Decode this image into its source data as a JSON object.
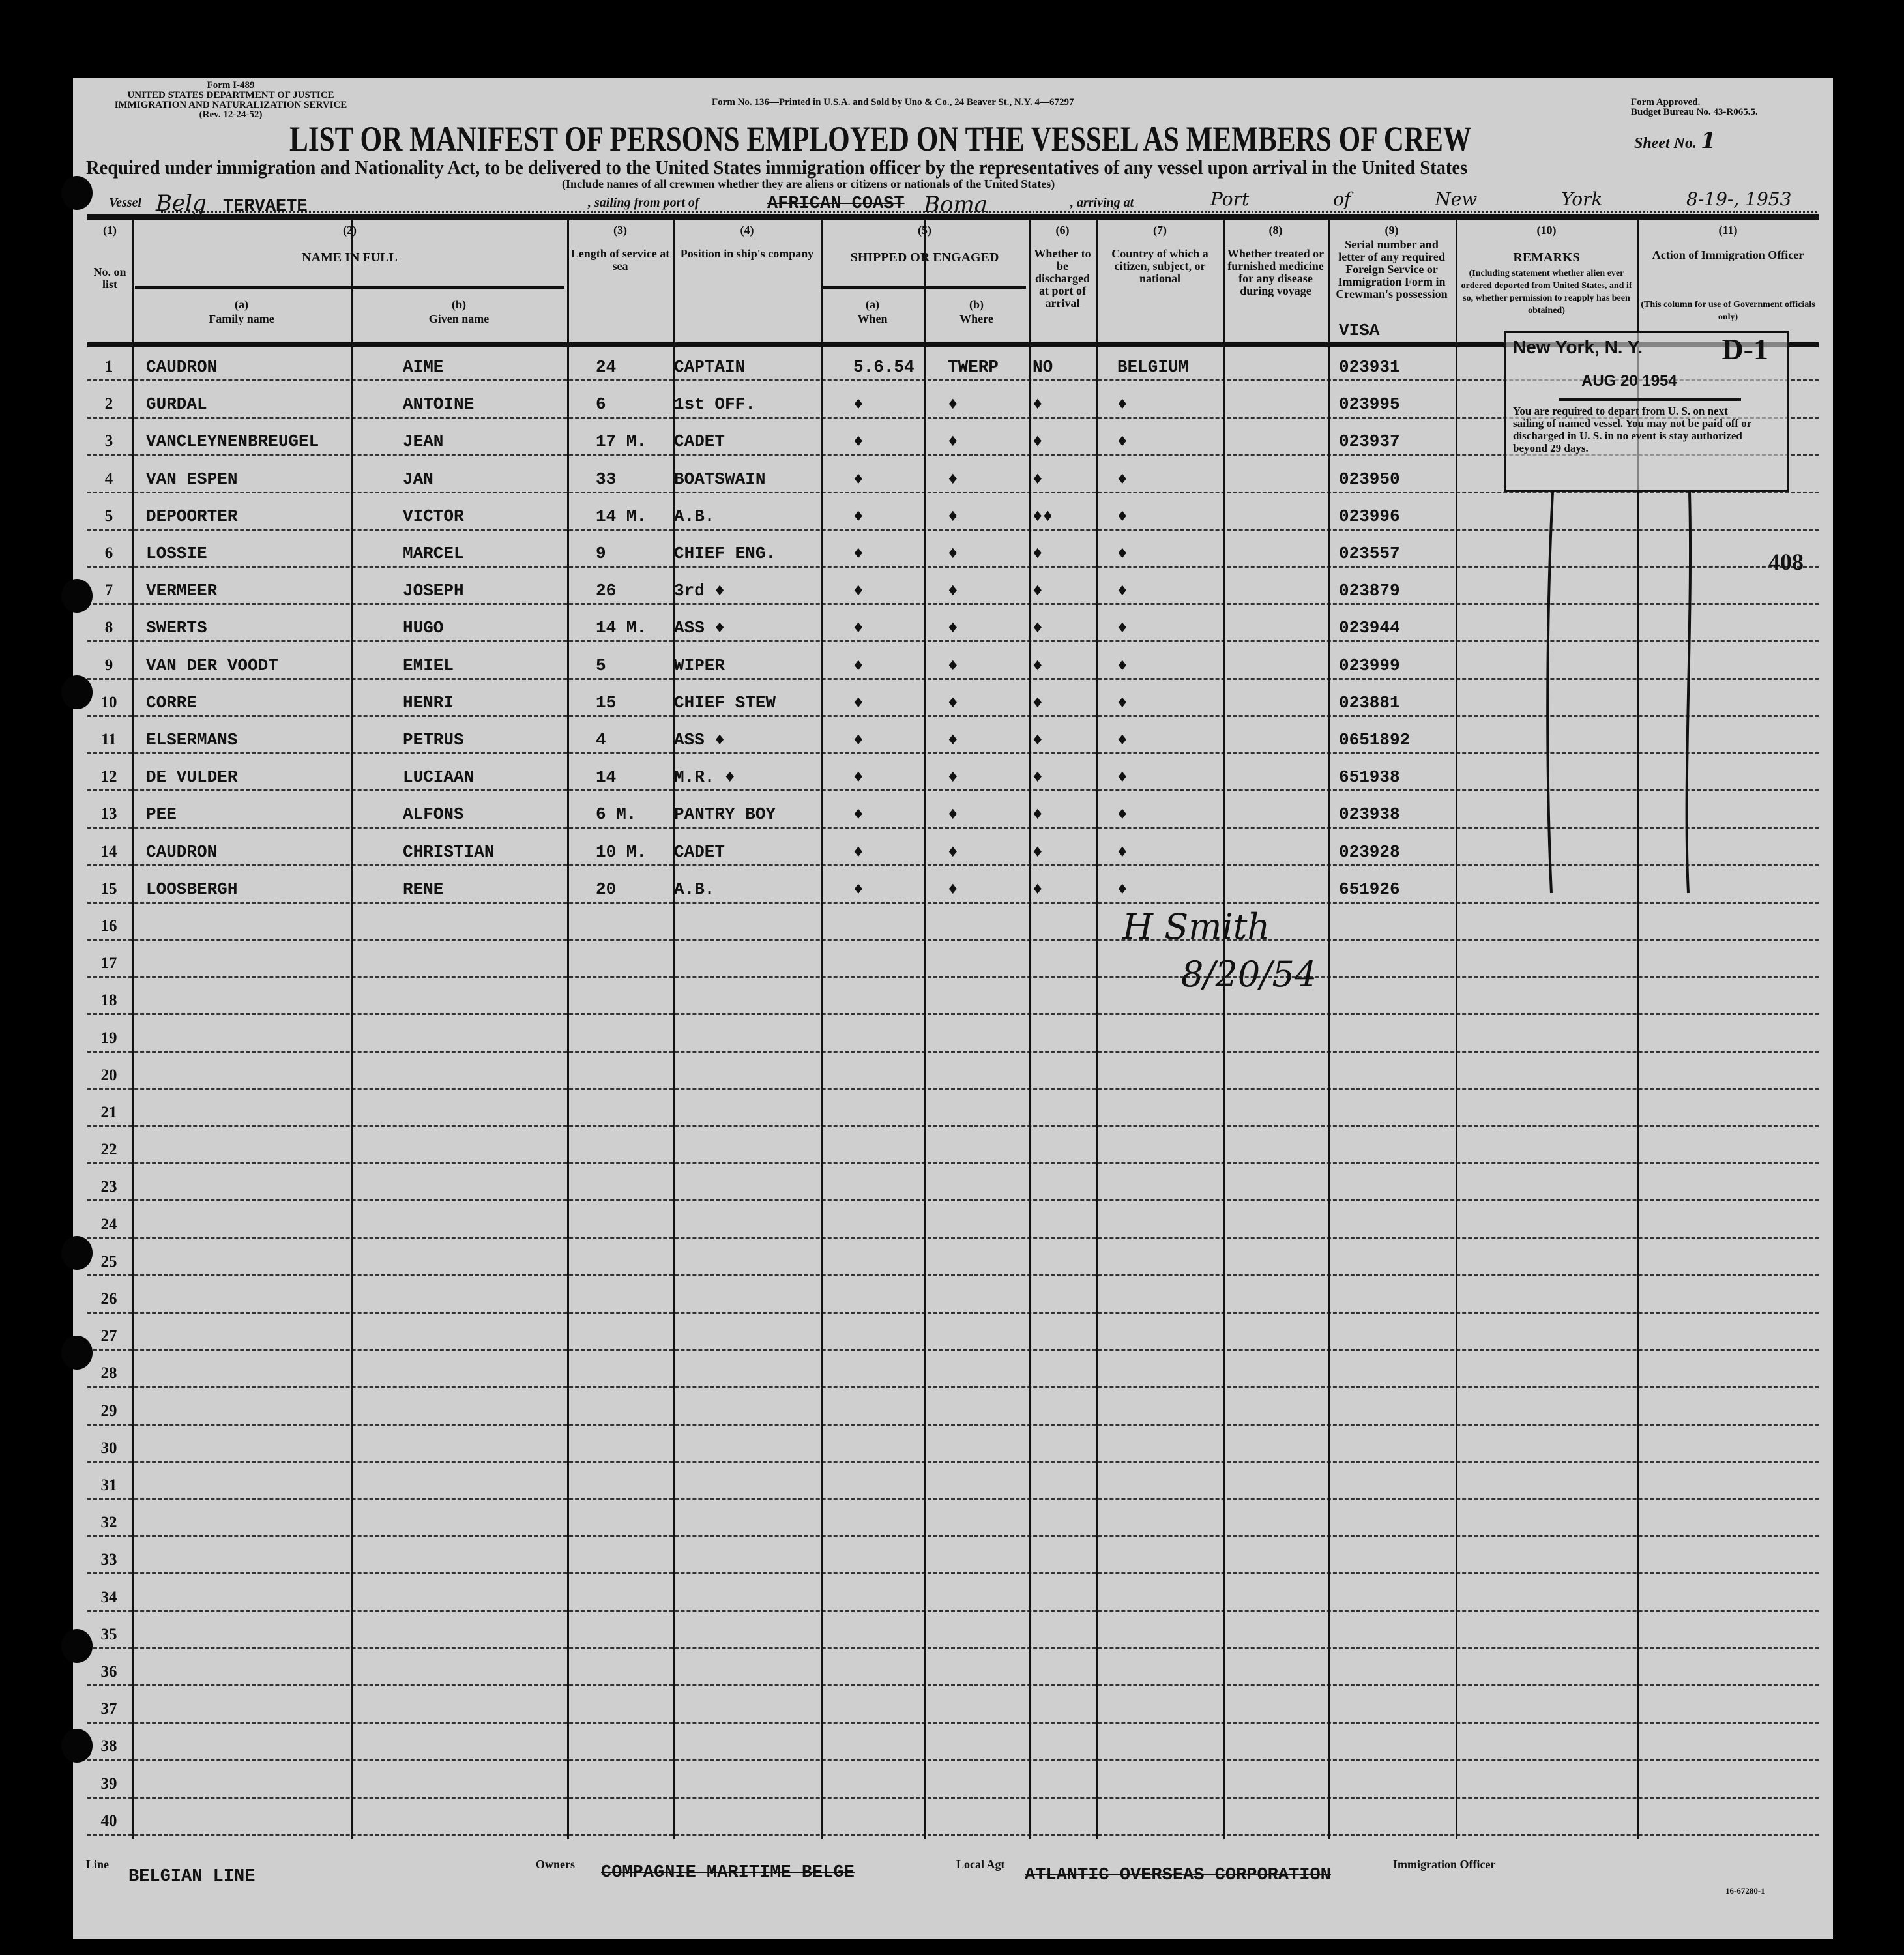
{
  "header": {
    "form_id": "Form I-489",
    "dept_line1": "UNITED STATES DEPARTMENT OF JUSTICE",
    "dept_line2": "IMMIGRATION AND NATURALIZATION SERVICE",
    "dept_line3": "(Rev. 12-24-52)",
    "printer": "Form No. 136—Printed in U.S.A. and Sold by Uno & Co., 24 Beaver St., N.Y. 4—67297",
    "approval_line1": "Form Approved.",
    "approval_line2": "Budget Bureau No. 43-R065.5.",
    "title": "LIST OR MANIFEST OF PERSONS EMPLOYED ON THE VESSEL AS MEMBERS OF CREW",
    "sheet_label": "Sheet No.",
    "sheet_no": "1",
    "subtitle": "Required under immigration and Nationality Act, to be delivered to the United States immigration officer by the representatives of any vessel upon arrival in the United States",
    "note": "(Include names of all crewmen whether they are aliens or citizens or nationals of the United States)"
  },
  "voyage": {
    "vessel_label": "Vessel",
    "vessel_flag_hand": "Belg",
    "vessel": "TERVAETE",
    "sailing_label": ", sailing from port of",
    "sailing_port": "AFRICAN COAST",
    "sailing_port_hand": "Boma",
    "arriving_label": ", arriving at",
    "arriving_hand": "Port of New York",
    "date_hand": "8-19-, 1953"
  },
  "columns": [
    {
      "num": "(1)",
      "label": "No. on list"
    },
    {
      "num": "(2)",
      "label": "NAME IN FULL",
      "sub": [
        {
          "num": "(a)",
          "label": "Family name"
        },
        {
          "num": "(b)",
          "label": "Given name"
        }
      ]
    },
    {
      "num": "(3)",
      "label": "Length of service at sea"
    },
    {
      "num": "(4)",
      "label": "Position in ship's company"
    },
    {
      "num": "(5)",
      "label": "SHIPPED OR ENGAGED",
      "sub": [
        {
          "num": "(a)",
          "label": "When"
        },
        {
          "num": "(b)",
          "label": "Where"
        }
      ]
    },
    {
      "num": "(6)",
      "label": "Whether to be discharged at port of arrival"
    },
    {
      "num": "(7)",
      "label": "Country of which a citizen, subject, or national"
    },
    {
      "num": "(8)",
      "label": "Whether treated or furnished medicine for any disease during voyage"
    },
    {
      "num": "(9)",
      "label": "Serial number and letter of any required Foreign Service or Immigration Form in Crewman's possession"
    },
    {
      "num": "(10)",
      "label": "REMARKS",
      "note": "(Including statement whether alien ever ordered deported from United States, and if so, whether permission to reapply has been obtained)"
    },
    {
      "num": "(11)",
      "label": "Action of Immigration Officer",
      "note": "(This column for use of Government officials only)"
    }
  ],
  "serial_heading": "VISA",
  "rows": [
    {
      "no": "1",
      "family": "CAUDRON",
      "given": "AIME",
      "length": "24",
      "position": "CAPTAIN",
      "when": "5.6.54",
      "where": "TWERP",
      "discharged": "NO",
      "country": "BELGIUM",
      "serial": "023931"
    },
    {
      "no": "2",
      "family": "GURDAL",
      "given": "ANTOINE",
      "length": "6",
      "position": "1st OFF.",
      "when": "♦",
      "where": "♦",
      "discharged": "♦",
      "country": "♦",
      "serial": "023995"
    },
    {
      "no": "3",
      "family": "VANCLEYNENBREUGEL",
      "given": "JEAN",
      "length": "17 M.",
      "position": "CADET",
      "when": "♦",
      "where": "♦",
      "discharged": "♦",
      "country": "♦",
      "serial": "023937"
    },
    {
      "no": "4",
      "family": "VAN ESPEN",
      "given": "JAN",
      "length": "33",
      "position": "BOATSWAIN",
      "when": "♦",
      "where": "♦",
      "discharged": "♦",
      "country": "♦",
      "serial": "023950"
    },
    {
      "no": "5",
      "family": "DEPOORTER",
      "given": "VICTOR",
      "length": "14 M.",
      "position": "A.B.",
      "when": "♦",
      "where": "♦",
      "discharged": "♦♦",
      "country": "♦",
      "serial": "023996"
    },
    {
      "no": "6",
      "family": "LOSSIE",
      "given": "MARCEL",
      "length": "9",
      "position": "CHIEF ENG.",
      "when": "♦",
      "where": "♦",
      "discharged": "♦",
      "country": "♦",
      "serial": "023557"
    },
    {
      "no": "7",
      "family": "VERMEER",
      "given": "JOSEPH",
      "length": "26",
      "position": "3rd ♦",
      "when": "♦",
      "where": "♦",
      "discharged": "♦",
      "country": "♦",
      "serial": "023879"
    },
    {
      "no": "8",
      "family": "SWERTS",
      "given": "HUGO",
      "length": "14 M.",
      "position": "ASS ♦",
      "when": "♦",
      "where": "♦",
      "discharged": "♦",
      "country": "♦",
      "serial": "023944"
    },
    {
      "no": "9",
      "family": "VAN DER VOODT",
      "given": "EMIEL",
      "length": "5",
      "position": "WIPER",
      "when": "♦",
      "where": "♦",
      "discharged": "♦",
      "country": "♦",
      "serial": "023999"
    },
    {
      "no": "10",
      "family": "CORRE",
      "given": "HENRI",
      "length": "15",
      "position": "CHIEF STEW",
      "when": "♦",
      "where": "♦",
      "discharged": "♦",
      "country": "♦",
      "serial": "023881"
    },
    {
      "no": "11",
      "family": "ELSERMANS",
      "given": "PETRUS",
      "length": "4",
      "position": "ASS ♦",
      "when": "♦",
      "where": "♦",
      "discharged": "♦",
      "country": "♦",
      "serial": "0651892"
    },
    {
      "no": "12",
      "family": "DE VULDER",
      "given": "LUCIAAN",
      "length": "14",
      "position": "M.R. ♦",
      "when": "♦",
      "where": "♦",
      "discharged": "♦",
      "country": "♦",
      "serial": "651938"
    },
    {
      "no": "13",
      "family": "PEE",
      "given": "ALFONS",
      "length": "6 M.",
      "position": "PANTRY BOY",
      "when": "♦",
      "where": "♦",
      "discharged": "♦",
      "country": "♦",
      "serial": "023938"
    },
    {
      "no": "14",
      "family": "CAUDRON",
      "given": "CHRISTIAN",
      "length": "10 M.",
      "position": "CADET",
      "when": "♦",
      "where": "♦",
      "discharged": "♦",
      "country": "♦",
      "serial": "023928"
    },
    {
      "no": "15",
      "family": "LOOSBERGH",
      "given": "RENE",
      "length": "20",
      "position": "A.B.",
      "when": "♦",
      "where": "♦",
      "discharged": "♦",
      "country": "♦",
      "serial": "651926"
    }
  ],
  "empty_row_numbers": [
    "16",
    "17",
    "18",
    "19",
    "20",
    "21",
    "22",
    "23",
    "24",
    "25",
    "26",
    "27",
    "28",
    "29",
    "30",
    "31",
    "32",
    "33",
    "34",
    "35",
    "36",
    "37",
    "38",
    "39",
    "40"
  ],
  "stamp": {
    "city": "New York, N. Y.",
    "code": "D-1",
    "date": "AUG 20 1954",
    "text": "You are required to depart from U. S. on next sailing of named vessel. You may not be paid off or discharged in U. S. in no event is stay authorized beyond 29 days."
  },
  "signature": {
    "name": "H Smith",
    "date": "8/20/54"
  },
  "margin_number": "408",
  "footer": {
    "line_label": "Line",
    "line": "BELGIAN LINE",
    "owners_label": "Owners",
    "owners": "COMPAGNIE MARITIME BELGE",
    "agent_label": "Local Agt",
    "agent": "ATLANTIC OVERSEAS CORPORATION",
    "officer_label": "Immigration Officer",
    "code": "16-67280-1"
  }
}
